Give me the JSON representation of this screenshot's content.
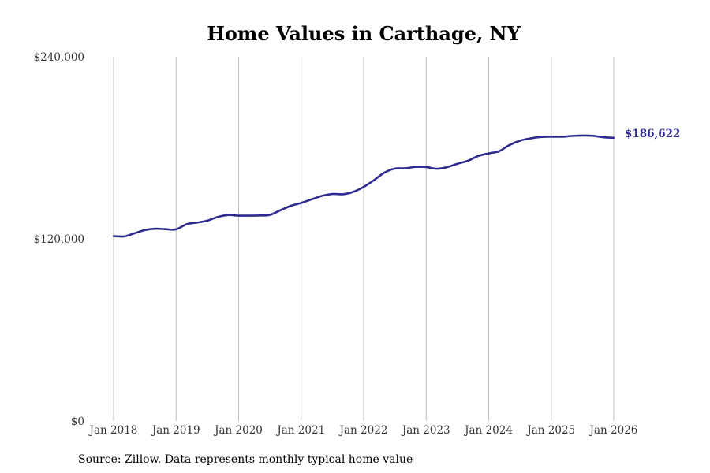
{
  "chart_data": {
    "type": "line",
    "title": "Home Values in Carthage, NY",
    "xlabel": "",
    "ylabel": "",
    "ylim": [
      0,
      240000
    ],
    "yticks": [
      {
        "value": 0,
        "label": "$0"
      },
      {
        "value": 120000,
        "label": "$120,000"
      },
      {
        "value": 240000,
        "label": "$240,000"
      }
    ],
    "xticks": [
      {
        "value": 2018.0,
        "label": "Jan 2018"
      },
      {
        "value": 2019.0,
        "label": "Jan 2019"
      },
      {
        "value": 2020.0,
        "label": "Jan 2020"
      },
      {
        "value": 2021.0,
        "label": "Jan 2021"
      },
      {
        "value": 2022.0,
        "label": "Jan 2022"
      },
      {
        "value": 2023.0,
        "label": "Jan 2023"
      },
      {
        "value": 2024.0,
        "label": "Jan 2024"
      },
      {
        "value": 2025.0,
        "label": "Jan 2025"
      },
      {
        "value": 2026.0,
        "label": "Jan 2026"
      }
    ],
    "grid": "vertical",
    "series": [
      {
        "name": "Typical home value",
        "color": "#2e2b8f",
        "x": [
          2018.0,
          2018.17,
          2018.33,
          2018.5,
          2018.67,
          2018.83,
          2019.0,
          2019.17,
          2019.33,
          2019.5,
          2019.67,
          2019.83,
          2020.0,
          2020.17,
          2020.33,
          2020.5,
          2020.67,
          2020.83,
          2021.0,
          2021.17,
          2021.33,
          2021.5,
          2021.67,
          2021.83,
          2022.0,
          2022.17,
          2022.33,
          2022.5,
          2022.67,
          2022.83,
          2023.0,
          2023.17,
          2023.33,
          2023.5,
          2023.67,
          2023.83,
          2024.0,
          2024.17,
          2024.33,
          2024.5,
          2024.67,
          2024.83,
          2025.0,
          2025.17,
          2025.33,
          2025.5,
          2025.67,
          2025.83,
          2026.0
        ],
        "values": [
          121800,
          121600,
          123600,
          125800,
          126700,
          126400,
          126300,
          129700,
          130700,
          132000,
          134500,
          135700,
          135300,
          135300,
          135400,
          135800,
          138900,
          141700,
          143700,
          146100,
          148300,
          149600,
          149400,
          150900,
          154200,
          158800,
          163600,
          166300,
          166500,
          167400,
          167300,
          166200,
          167200,
          169500,
          171500,
          174600,
          176300,
          177800,
          181800,
          184700,
          186200,
          187100,
          187300,
          187300,
          187800,
          188100,
          187900,
          187000,
          186622
        ]
      }
    ],
    "end_label": "$186,622",
    "source": "Source: Zillow. Data represents monthly typical home value"
  }
}
